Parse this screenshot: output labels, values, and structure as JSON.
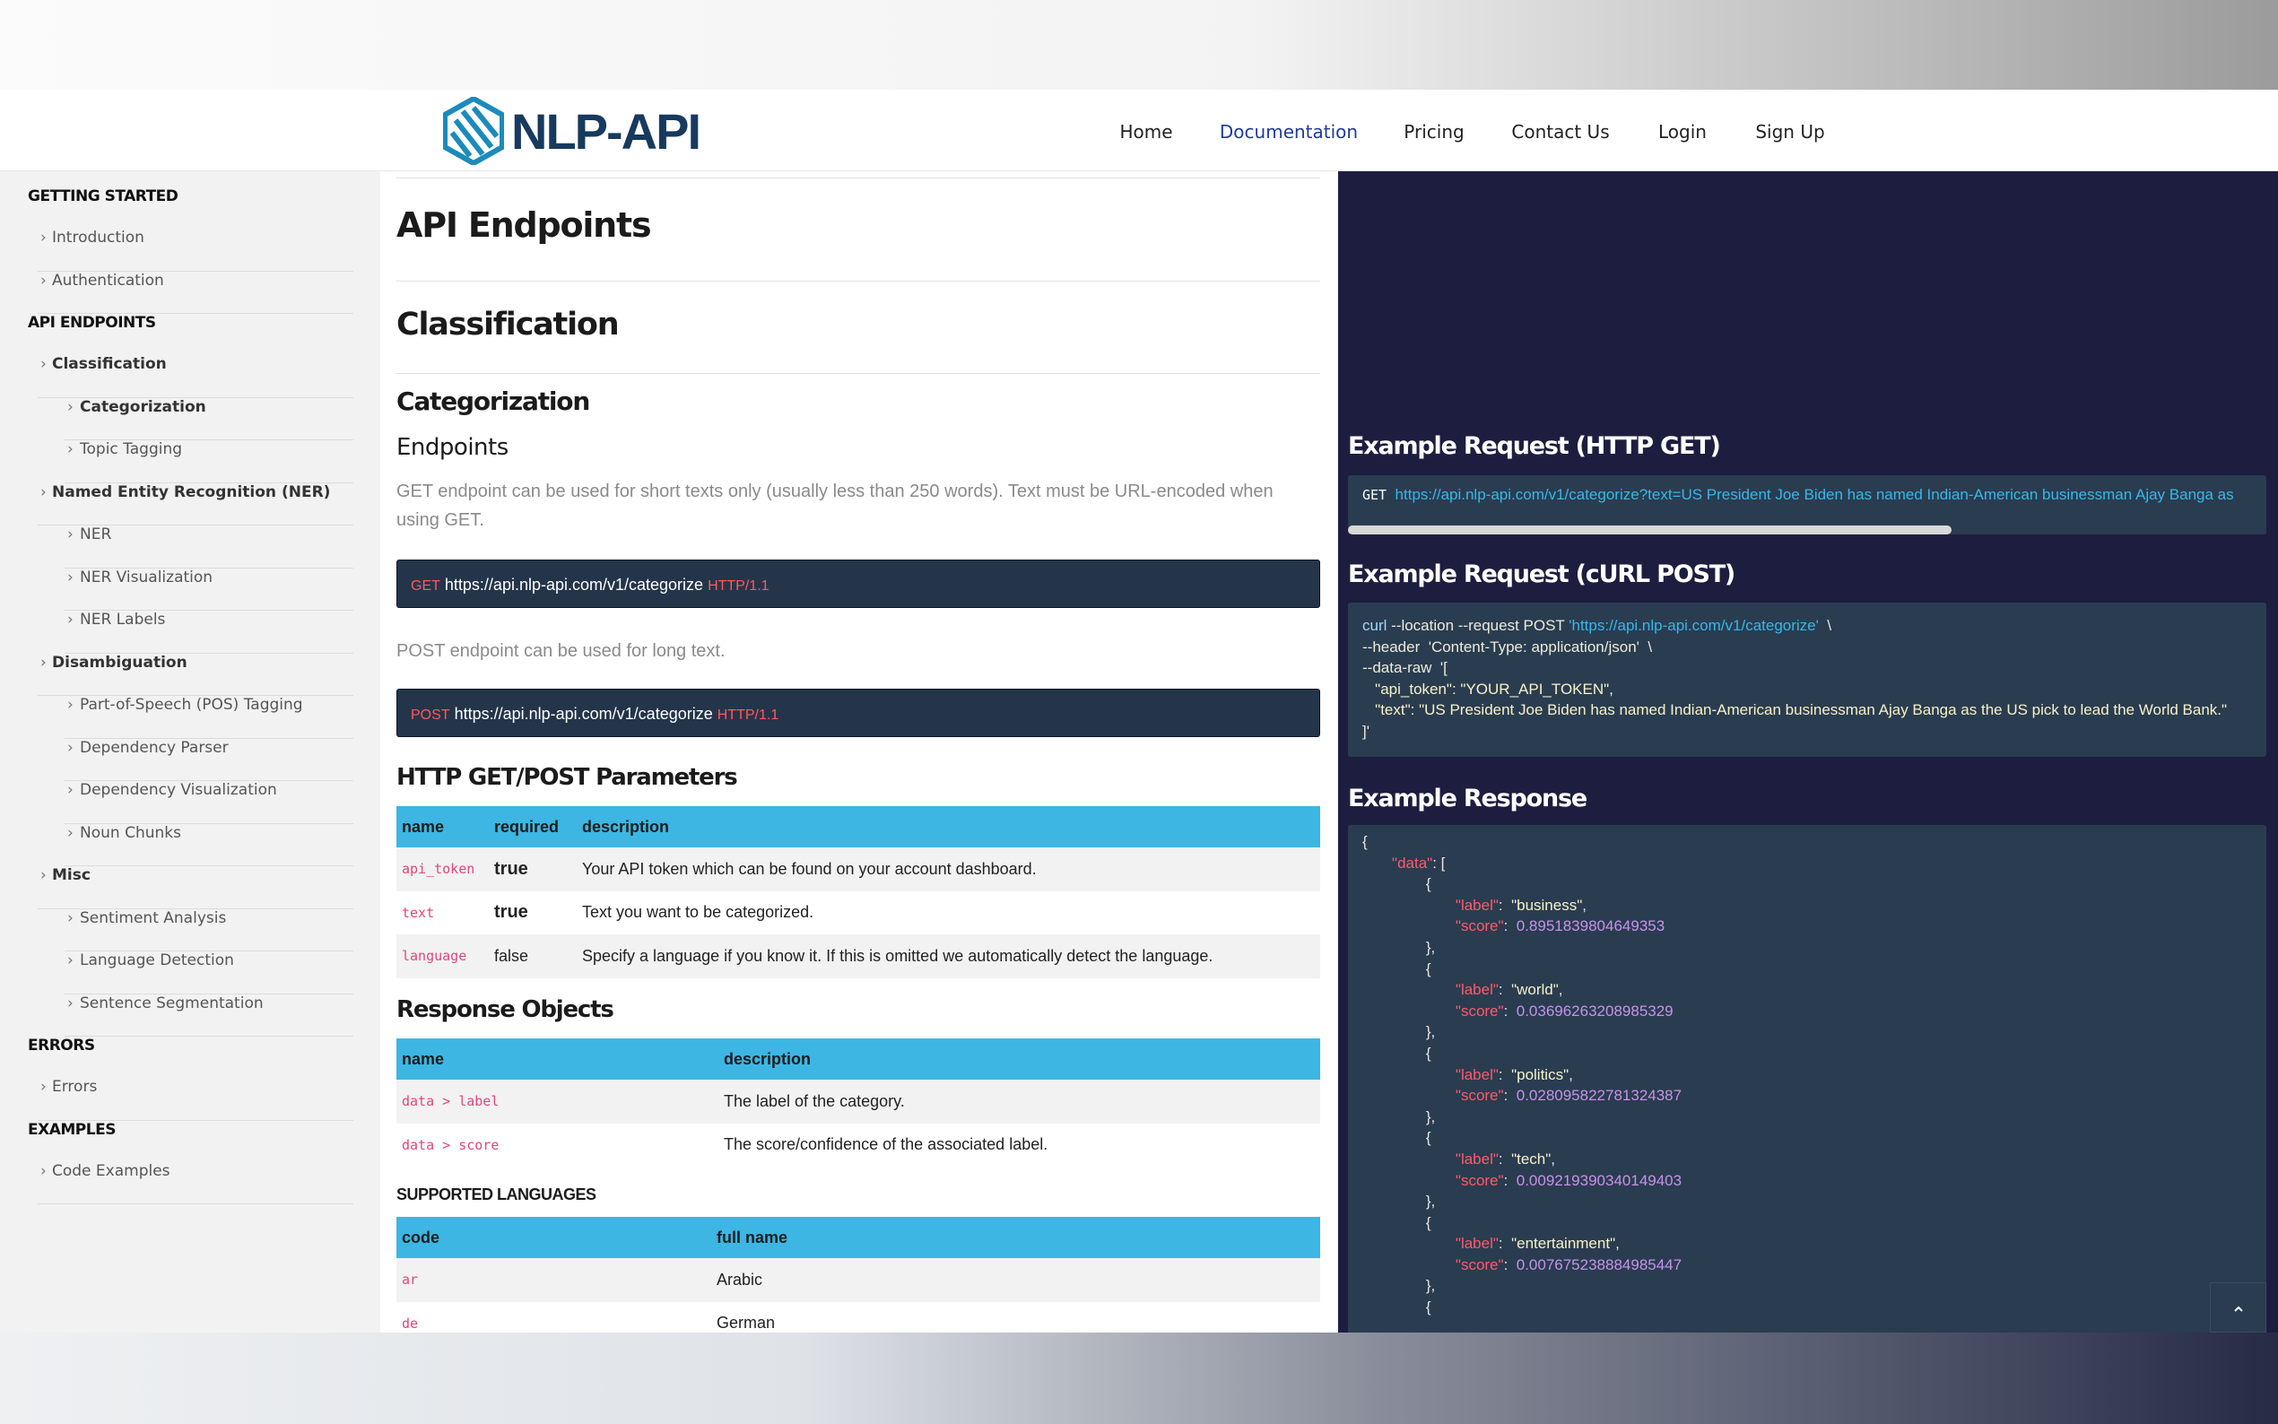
{
  "nav": {
    "logo": "NLP-API",
    "links": [
      "Home",
      "Documentation",
      "Pricing",
      "Contact Us",
      "Login",
      "Sign Up"
    ],
    "active": 1
  },
  "sidebar": [
    {
      "heading": "GETTING STARTED",
      "items": [
        {
          "label": "Introduction"
        },
        {
          "label": "Authentication"
        }
      ]
    },
    {
      "heading": "API ENDPOINTS",
      "items": [
        {
          "label": "Classification",
          "children": [
            {
              "label": "Categorization",
              "active": true
            },
            {
              "label": "Topic Tagging"
            }
          ]
        },
        {
          "label": "Named Entity Recognition (NER)",
          "children": [
            {
              "label": "NER"
            },
            {
              "label": "NER Visualization"
            },
            {
              "label": "NER Labels"
            }
          ]
        },
        {
          "label": "Disambiguation",
          "children": [
            {
              "label": "Part-of-Speech (POS) Tagging"
            },
            {
              "label": "Dependency Parser"
            },
            {
              "label": "Dependency Visualization"
            },
            {
              "label": "Noun Chunks"
            }
          ]
        },
        {
          "label": "Misc",
          "children": [
            {
              "label": "Sentiment Analysis"
            },
            {
              "label": "Language Detection"
            },
            {
              "label": "Sentence Segmentation"
            }
          ]
        }
      ]
    },
    {
      "heading": "ERRORS",
      "items": [
        {
          "label": "Errors"
        }
      ]
    },
    {
      "heading": "EXAMPLES",
      "items": [
        {
          "label": "Code Examples"
        }
      ]
    }
  ],
  "content": {
    "title": "API Endpoints",
    "section": "Classification",
    "subsection": "Categorization",
    "endpoints_heading": "Endpoints",
    "get_note": "GET endpoint can be used for short texts only (usually less than 250 words). Text must be URL-encoded when using GET.",
    "get_request": {
      "method": "GET",
      "url": "https://api.nlp-api.com/v1/categorize",
      "protocol": "HTTP/1.1"
    },
    "post_note": "POST endpoint can be used for long text.",
    "post_request": {
      "method": "POST",
      "url": "https://api.nlp-api.com/v1/categorize",
      "protocol": "HTTP/1.1"
    },
    "params": {
      "heading": "HTTP GET/POST Parameters",
      "columns": [
        "name",
        "required",
        "description"
      ],
      "rows": [
        [
          "api_token",
          "true",
          "Your API token which can be found on your account dashboard."
        ],
        [
          "text",
          "true",
          "Text you want to be categorized."
        ],
        [
          "language",
          "false",
          "Specify a language if you know it. If this is omitted we automatically detect the language."
        ]
      ]
    },
    "response_objects": {
      "heading": "Response Objects",
      "columns": [
        "name",
        "description"
      ],
      "rows": [
        [
          "data > label",
          "The label of the category."
        ],
        [
          "data > score",
          "The score/confidence of the associated label."
        ]
      ]
    },
    "languages": {
      "heading": "SUPPORTED LANGUAGES",
      "columns": [
        "code",
        "full name"
      ],
      "rows": [
        [
          "ar",
          "Arabic"
        ],
        [
          "de",
          "German"
        ]
      ]
    }
  },
  "examples": {
    "get": {
      "heading": "Example Request (HTTP GET)",
      "method": "GET",
      "url": "https://api.nlp-api.com/v1/categorize?text=US President Joe Biden has named Indian-American businessman Ajay Banga as"
    },
    "curl": {
      "heading": "Example Request (cURL POST)",
      "lines": [
        [
          {
            "text": "curl",
            "color": "#9fd8ff"
          },
          {
            "text": " --location --request ",
            "color": "#ecebd8"
          },
          {
            "text": "POST",
            "color": "#ecebd8"
          },
          {
            "text": " 'https://api.nlp-api.com/v1/categorize'",
            "color": "#36b8ea"
          },
          {
            "text": "  \\",
            "color": "#ecebd8"
          }
        ],
        [
          {
            "text": "--header  'Content-Type: application/json'  \\",
            "color": "#ecebd8"
          }
        ],
        [
          {
            "text": "--data-raw  '[",
            "color": "#ecebd8"
          }
        ],
        [
          {
            "text": "   \"api_token\": \"YOUR_API_TOKEN\",",
            "color": "#f6f1c9"
          }
        ],
        [
          {
            "text": "   \"text\": \"US President Joe Biden has named Indian-American businessman Ajay Banga as the US pick to lead the World Bank.\"",
            "color": "#f6f1c9"
          }
        ],
        [
          {
            "text": "]'",
            "color": "#ecebd8"
          }
        ]
      ]
    },
    "response": {
      "heading": "Example Response",
      "lines": [
        [
          {
            "text": "{",
            "color": "#e6e6e6"
          }
        ],
        [
          {
            "text": "       \"data\"",
            "color": "#ff5a6a"
          },
          {
            "text": ": [",
            "color": "#e6e6e6"
          }
        ],
        [
          {
            "text": "               {",
            "color": "#e6e6e6"
          }
        ],
        [
          {
            "text": "                      \"label\"",
            "color": "#ff5a6a"
          },
          {
            "text": ":  ",
            "color": "#e6e6e6"
          },
          {
            "text": "\"business\"",
            "color": "#f6f1c9"
          },
          {
            "text": ",",
            "color": "#e6e6e6"
          }
        ],
        [
          {
            "text": "                      \"score\"",
            "color": "#ff5a6a"
          },
          {
            "text": ":  ",
            "color": "#e6e6e6"
          },
          {
            "text": "0.8951839804649353",
            "color": "#c792ea"
          }
        ],
        [
          {
            "text": "               },",
            "color": "#e6e6e6"
          }
        ],
        [
          {
            "text": "               {",
            "color": "#e6e6e6"
          }
        ],
        [
          {
            "text": "                      \"label\"",
            "color": "#ff5a6a"
          },
          {
            "text": ":  ",
            "color": "#e6e6e6"
          },
          {
            "text": "\"world\"",
            "color": "#f6f1c9"
          },
          {
            "text": ",",
            "color": "#e6e6e6"
          }
        ],
        [
          {
            "text": "                      \"score\"",
            "color": "#ff5a6a"
          },
          {
            "text": ":  ",
            "color": "#e6e6e6"
          },
          {
            "text": "0.03696263208985329",
            "color": "#c792ea"
          }
        ],
        [
          {
            "text": "               },",
            "color": "#e6e6e6"
          }
        ],
        [
          {
            "text": "               {",
            "color": "#e6e6e6"
          }
        ],
        [
          {
            "text": "                      \"label\"",
            "color": "#ff5a6a"
          },
          {
            "text": ":  ",
            "color": "#e6e6e6"
          },
          {
            "text": "\"politics\"",
            "color": "#f6f1c9"
          },
          {
            "text": ",",
            "color": "#e6e6e6"
          }
        ],
        [
          {
            "text": "                      \"score\"",
            "color": "#ff5a6a"
          },
          {
            "text": ":  ",
            "color": "#e6e6e6"
          },
          {
            "text": "0.028095822781324387",
            "color": "#c792ea"
          }
        ],
        [
          {
            "text": "               },",
            "color": "#e6e6e6"
          }
        ],
        [
          {
            "text": "               {",
            "color": "#e6e6e6"
          }
        ],
        [
          {
            "text": "                      \"label\"",
            "color": "#ff5a6a"
          },
          {
            "text": ":  ",
            "color": "#e6e6e6"
          },
          {
            "text": "\"tech\"",
            "color": "#f6f1c9"
          },
          {
            "text": ",",
            "color": "#e6e6e6"
          }
        ],
        [
          {
            "text": "                      \"score\"",
            "color": "#ff5a6a"
          },
          {
            "text": ":  ",
            "color": "#e6e6e6"
          },
          {
            "text": "0.009219390340149403",
            "color": "#c792ea"
          }
        ],
        [
          {
            "text": "               },",
            "color": "#e6e6e6"
          }
        ],
        [
          {
            "text": "               {",
            "color": "#e6e6e6"
          }
        ],
        [
          {
            "text": "                      \"label\"",
            "color": "#ff5a6a"
          },
          {
            "text": ":  ",
            "color": "#e6e6e6"
          },
          {
            "text": "\"entertainment\"",
            "color": "#f6f1c9"
          },
          {
            "text": ",",
            "color": "#e6e6e6"
          }
        ],
        [
          {
            "text": "                      \"score\"",
            "color": "#ff5a6a"
          },
          {
            "text": ":  ",
            "color": "#e6e6e6"
          },
          {
            "text": "0.007675238884985447",
            "color": "#c792ea"
          }
        ],
        [
          {
            "text": "               },",
            "color": "#e6e6e6"
          }
        ],
        [
          {
            "text": "               {",
            "color": "#e6e6e6"
          }
        ]
      ]
    }
  }
}
